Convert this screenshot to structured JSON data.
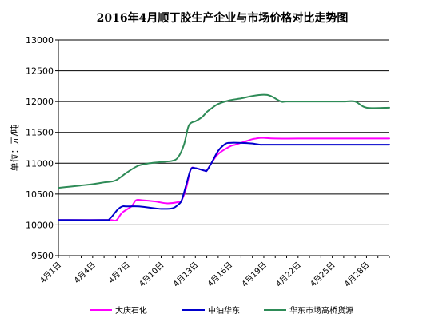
{
  "chart_data": {
    "type": "line",
    "title": "2016年4月顺丁胶生产企业与市场价格对比走势图",
    "ylabel": "单位：元/吨",
    "xlabel": "",
    "ylim": [
      9500,
      13000
    ],
    "yticks": [
      9500,
      10000,
      10500,
      11000,
      11500,
      12000,
      12500,
      13000
    ],
    "x_tick_labels": [
      "4月1日",
      "4月4日",
      "4月7日",
      "4月10日",
      "4月13日",
      "4月16日",
      "4月19日",
      "4月22日",
      "4月25日",
      "4月28日"
    ],
    "x_tick_days": [
      1,
      4,
      7,
      10,
      13,
      16,
      19,
      22,
      25,
      28
    ],
    "x_range": [
      1,
      30
    ],
    "grid": {
      "horizontal": true,
      "vertical": false
    },
    "legend_position": "bottom",
    "series": [
      {
        "name": "大庆石化",
        "color": "#ff00ff",
        "x": [
          1,
          5,
          5.6,
          6,
          6.2,
          6.6,
          7.4,
          7.8,
          8.4,
          9.5,
          10.5,
          11.5,
          11.8,
          12.2,
          12.6,
          13,
          13.8,
          14,
          14.4,
          15,
          16,
          16.5,
          17,
          17.5,
          18,
          18.3,
          18.7,
          19,
          20,
          22,
          25,
          28,
          30
        ],
        "values": [
          10080,
          10080,
          10080,
          10070,
          10100,
          10200,
          10300,
          10400,
          10400,
          10380,
          10350,
          10370,
          10400,
          10600,
          10900,
          10920,
          10880,
          10880,
          11000,
          11150,
          11270,
          11300,
          11330,
          11360,
          11390,
          11400,
          11410,
          11410,
          11400,
          11400,
          11400,
          11400,
          11400
        ]
      },
      {
        "name": "中油华东",
        "color": "#0000cc",
        "x": [
          1,
          5,
          5.5,
          6.2,
          6.6,
          7,
          8,
          9,
          10,
          11,
          11.5,
          11.8,
          12.2,
          12.6,
          13,
          13.8,
          14,
          14.4,
          15,
          15.6,
          16,
          17,
          18,
          18.3,
          18.7,
          19,
          20,
          22,
          25,
          28,
          30
        ],
        "values": [
          10080,
          10080,
          10100,
          10250,
          10300,
          10300,
          10300,
          10280,
          10260,
          10270,
          10330,
          10400,
          10650,
          10900,
          10920,
          10880,
          10880,
          11000,
          11200,
          11310,
          11330,
          11330,
          11320,
          11310,
          11300,
          11300,
          11300,
          11300,
          11300,
          11300,
          11300
        ]
      },
      {
        "name": "华东市场高桥货源",
        "color": "#2e8b57",
        "x": [
          1,
          2,
          3,
          4,
          5,
          6,
          7,
          8,
          9,
          10,
          11,
          11.5,
          12,
          12.4,
          12.8,
          13,
          13.6,
          14,
          14.5,
          15,
          16,
          17,
          18,
          19,
          19.6,
          20.5,
          21,
          23,
          25,
          26,
          27,
          28,
          30
        ],
        "values": [
          10600,
          10620,
          10640,
          10660,
          10690,
          10720,
          10850,
          10960,
          11000,
          11020,
          11040,
          11100,
          11300,
          11600,
          11670,
          11680,
          11750,
          11830,
          11900,
          11960,
          12020,
          12050,
          12090,
          12110,
          12090,
          12000,
          12000,
          12000,
          12000,
          12000,
          12000,
          11900,
          11900
        ]
      }
    ]
  }
}
